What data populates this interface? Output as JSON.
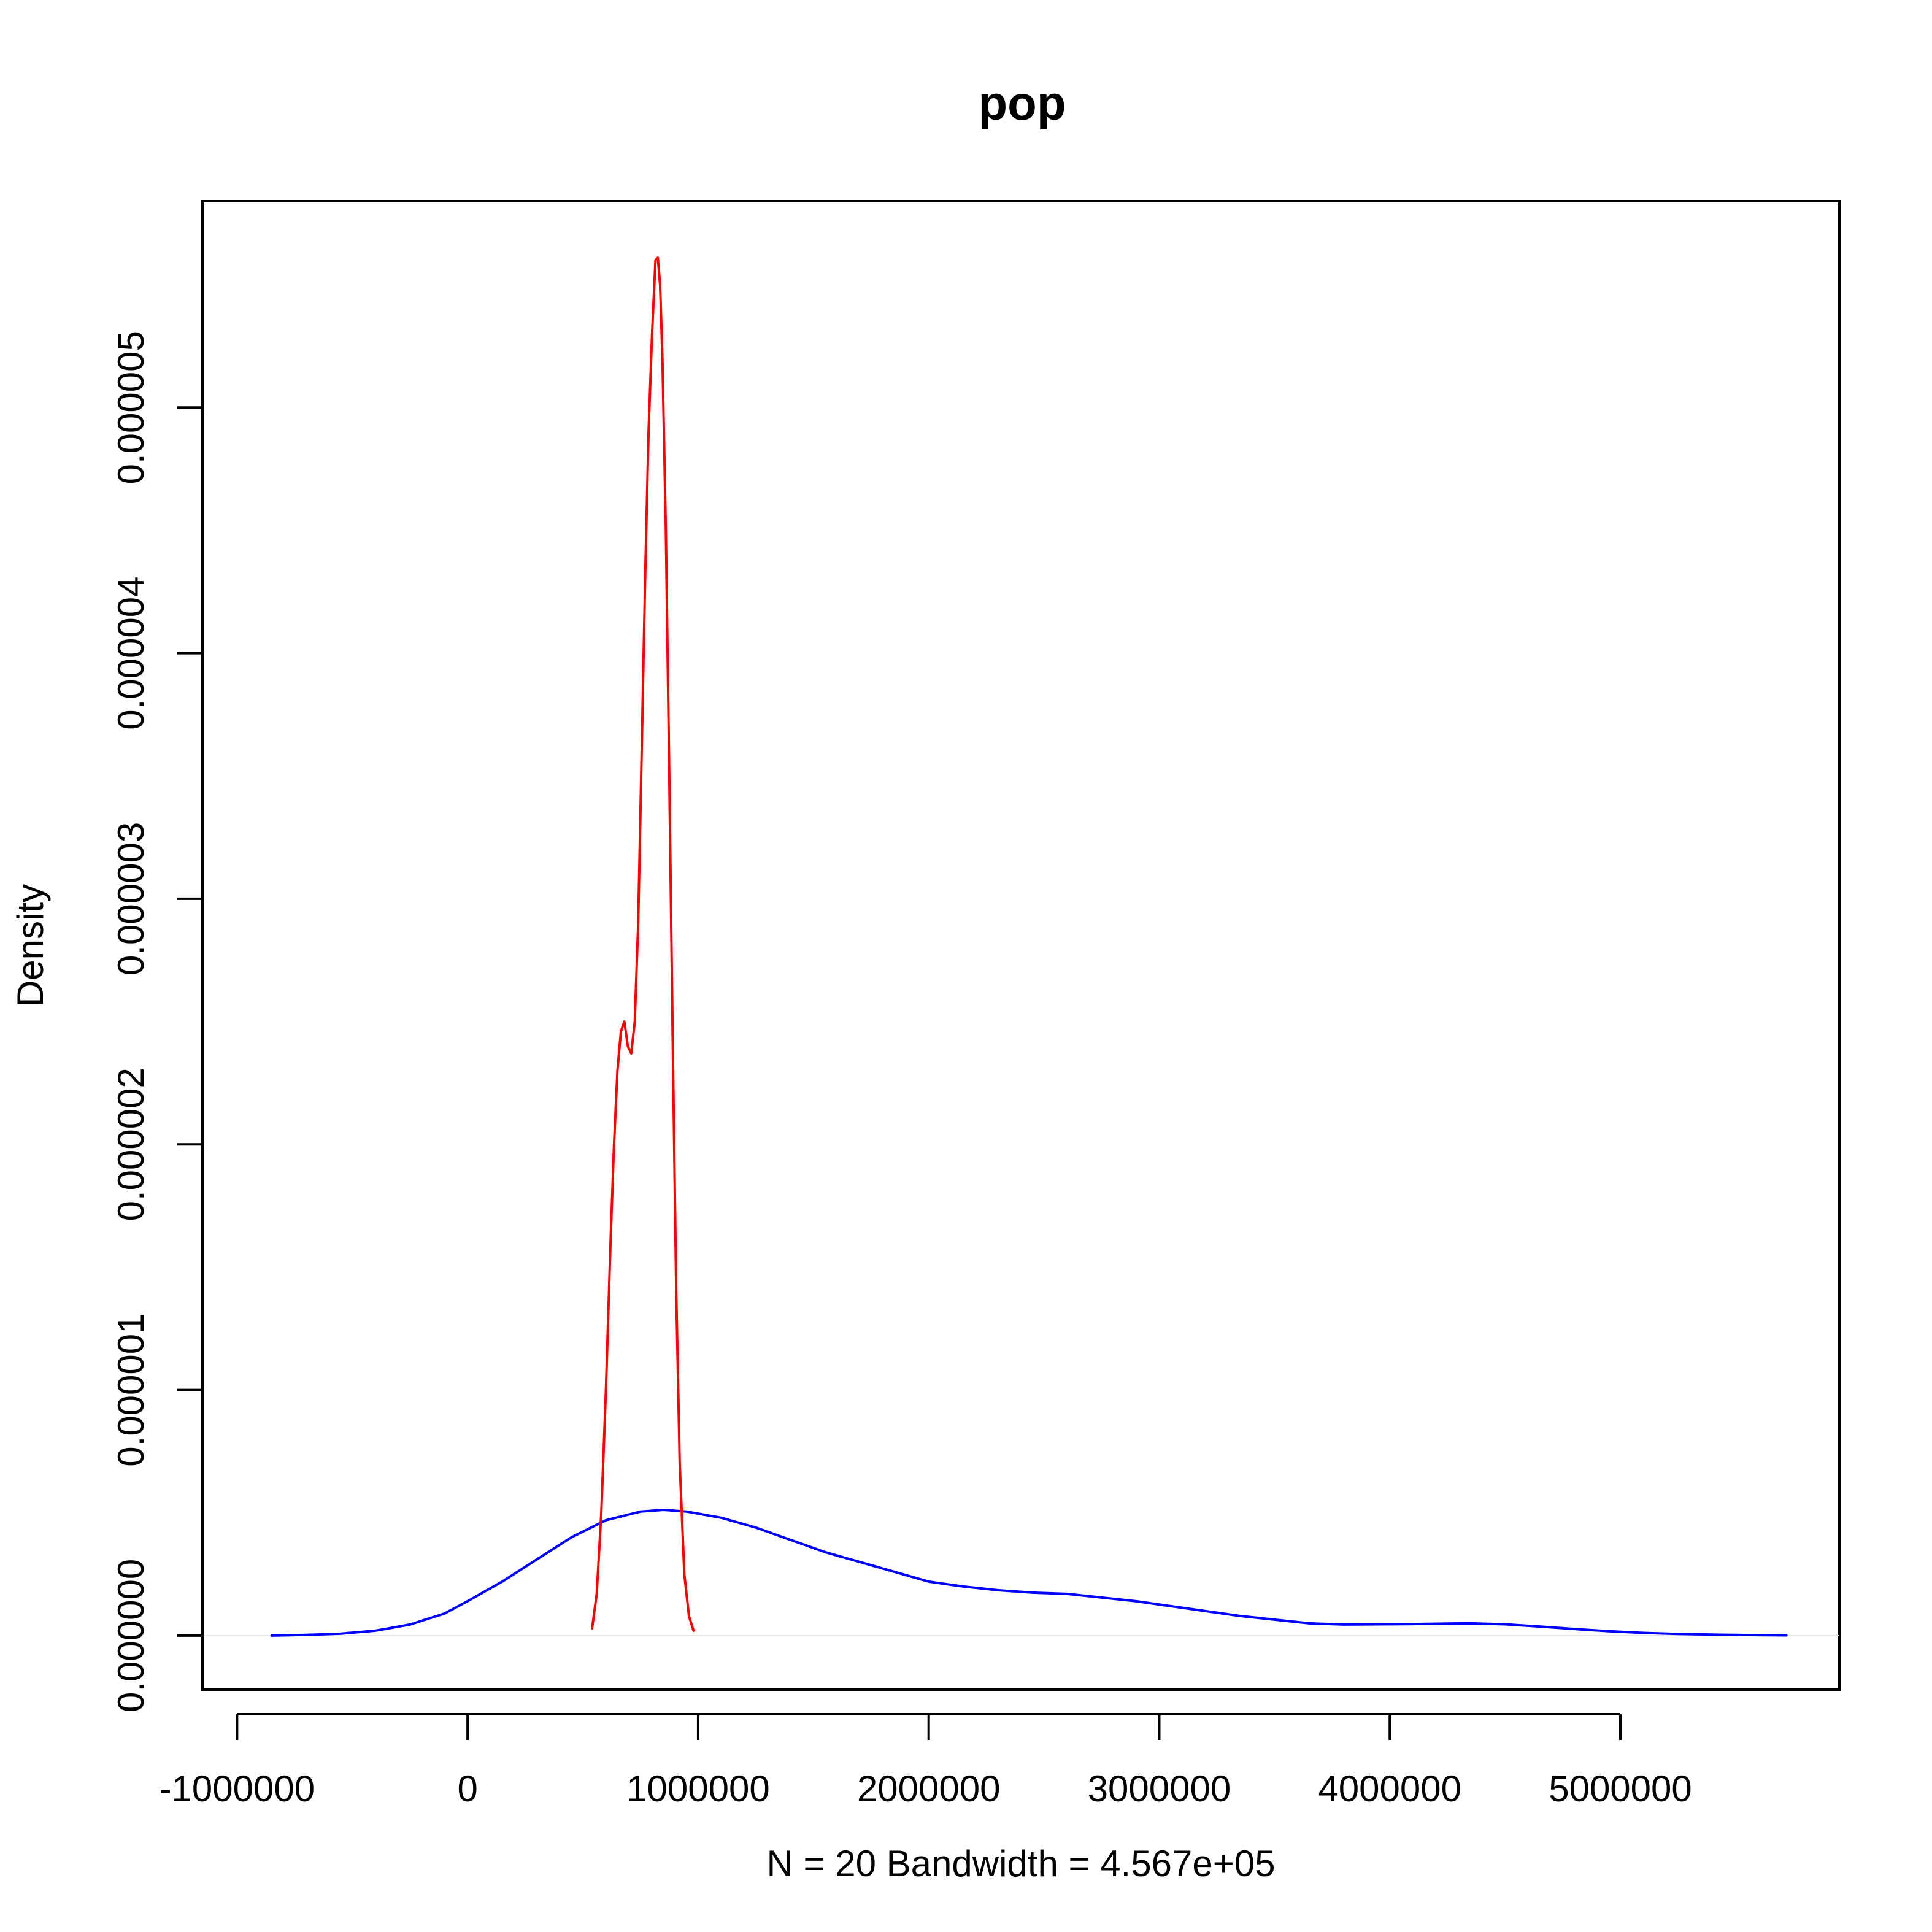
{
  "chart_data": {
    "type": "line",
    "title": "pop",
    "xlabel": "N = 20   Bandwidth = 4.567e+05",
    "ylabel": "Density",
    "xlim": [
      -1150000,
      5950000
    ],
    "ylim": [
      -2.2e-07,
      5.84e-06
    ],
    "x_ticks": [
      {
        "value": -1000000,
        "label": "-1000000"
      },
      {
        "value": 0,
        "label": "0"
      },
      {
        "value": 1000000,
        "label": "1000000"
      },
      {
        "value": 2000000,
        "label": "2000000"
      },
      {
        "value": 3000000,
        "label": "3000000"
      },
      {
        "value": 4000000,
        "label": "4000000"
      },
      {
        "value": 5000000,
        "label": "5000000"
      }
    ],
    "y_ticks": [
      {
        "value": 0,
        "label": "0.000000"
      },
      {
        "value": 1e-06,
        "label": "0.000001"
      },
      {
        "value": 2e-06,
        "label": "0.000002"
      },
      {
        "value": 3e-06,
        "label": "0.000003"
      },
      {
        "value": 4e-06,
        "label": "0.000004"
      },
      {
        "value": 5e-06,
        "label": "0.000005"
      }
    ],
    "baseline": 0,
    "grid": false,
    "legend": "none",
    "series": [
      {
        "color": "#0000ff",
        "x": [
          -850000,
          -700000,
          -550000,
          -400000,
          -250000,
          -100000,
          0,
          150000,
          300000,
          450000,
          600000,
          750000,
          850000,
          950000,
          1100000,
          1250000,
          1400000,
          1550000,
          1700000,
          1850000,
          2000000,
          2150000,
          2300000,
          2450000,
          2600000,
          2750000,
          2900000,
          3050000,
          3200000,
          3350000,
          3500000,
          3650000,
          3800000,
          3950000,
          4100000,
          4250000,
          4350000,
          4500000,
          4650000,
          4800000,
          4950000,
          5100000,
          5250000,
          5400000,
          5550000,
          5720000
        ],
        "y": [
          0.0,
          2.7e-09,
          8e-09,
          2e-08,
          4.5e-08,
          9e-08,
          1.4e-07,
          2.2e-07,
          3.1e-07,
          4e-07,
          4.7e-07,
          5.05e-07,
          5.12e-07,
          5.05e-07,
          4.8e-07,
          4.4e-07,
          3.9e-07,
          3.4e-07,
          3e-07,
          2.6e-07,
          2.2e-07,
          2e-07,
          1.85e-07,
          1.75e-07,
          1.7e-07,
          1.55e-07,
          1.4e-07,
          1.2e-07,
          1e-07,
          8e-08,
          6.5e-08,
          5e-08,
          4.5e-08,
          4.6e-08,
          4.7e-08,
          4.9e-08,
          5e-08,
          4.6e-08,
          3.7e-08,
          2.7e-08,
          1.8e-08,
          1.1e-08,
          6.5e-09,
          4e-09,
          2.2e-09,
          1e-09
        ]
      },
      {
        "color": "#ff0000",
        "x": [
          540000,
          560000,
          580000,
          600000,
          620000,
          635000,
          650000,
          665000,
          680000,
          695000,
          710000,
          725000,
          740000,
          755000,
          770000,
          785000,
          800000,
          815000,
          825000,
          835000,
          845000,
          860000,
          875000,
          890000,
          905000,
          920000,
          940000,
          960000,
          980000
        ],
        "y": [
          3e-08,
          1.7e-07,
          5e-07,
          1e-06,
          1.6e-06,
          2e-06,
          2.3e-06,
          2.46e-06,
          2.5e-06,
          2.4e-06,
          2.37e-06,
          2.5e-06,
          2.9e-06,
          3.6e-06,
          4.3e-06,
          4.9e-06,
          5.3e-06,
          5.6e-06,
          5.61e-06,
          5.5e-06,
          5.2e-06,
          4.5e-06,
          3.5e-06,
          2.4e-06,
          1.4e-06,
          7e-07,
          2.5e-07,
          8e-08,
          2e-08
        ]
      }
    ]
  }
}
